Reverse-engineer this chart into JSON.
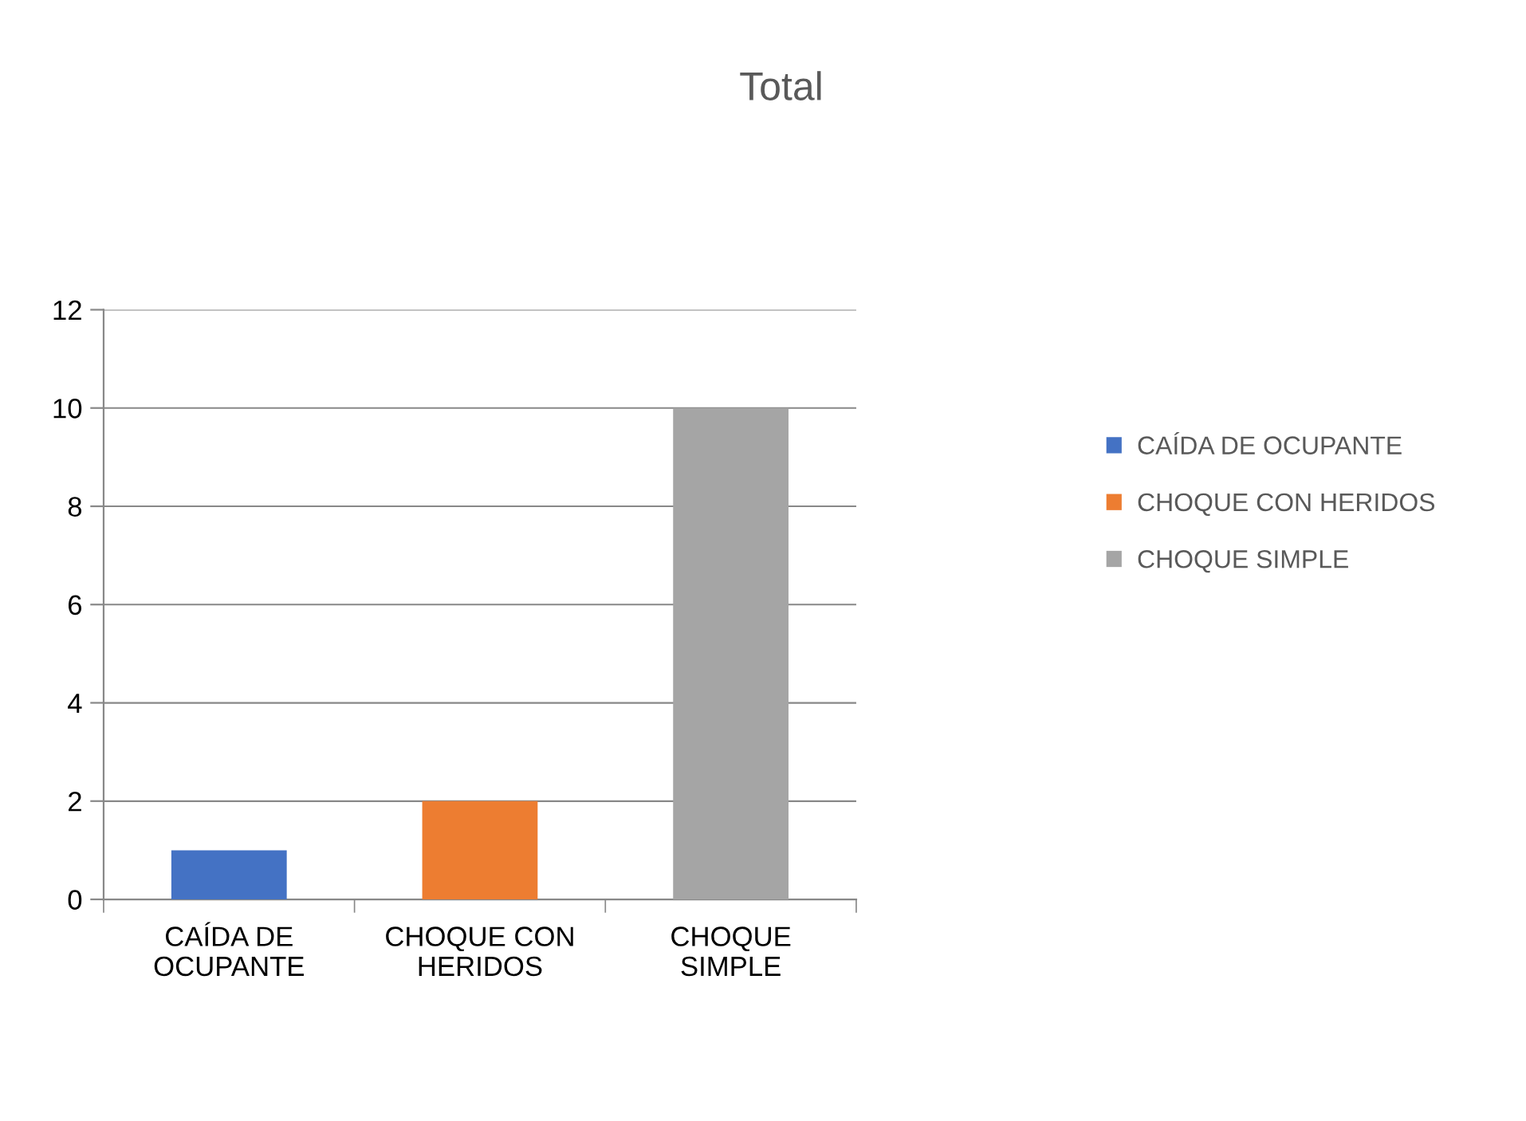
{
  "chart_data": {
    "type": "bar",
    "title": "Total",
    "categories": [
      "CAÍDA DE\nOCUPANTE",
      "CHOQUE CON\nHERIDOS",
      "CHOQUE\nSIMPLE"
    ],
    "series": [
      {
        "name": "CAÍDA DE OCUPANTE",
        "color": "#4472c4",
        "values": [
          1,
          null,
          null
        ]
      },
      {
        "name": "CHOQUE CON HERIDOS",
        "color": "#ed7d31",
        "values": [
          null,
          2,
          null
        ]
      },
      {
        "name": "CHOQUE SIMPLE",
        "color": "#a5a5a5",
        "values": [
          null,
          null,
          10
        ]
      }
    ],
    "ylim": [
      0,
      12
    ],
    "yticks": [
      0,
      2,
      4,
      6,
      8,
      10,
      12
    ],
    "grid": "y",
    "legend": "right"
  }
}
